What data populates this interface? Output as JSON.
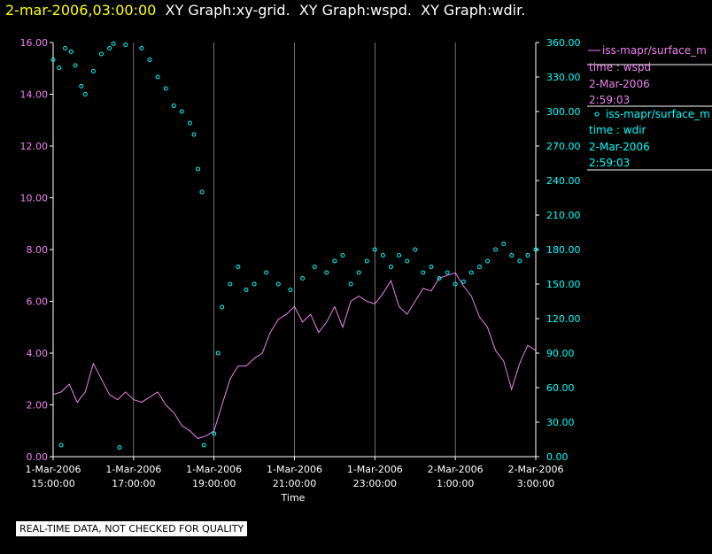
{
  "header": {
    "timestamp": "2-mar-2006,03:00:00",
    "graphs": [
      "XY Graph:xy-grid.",
      "XY Graph:wspd.",
      "XY Graph:wdir."
    ]
  },
  "footer": {
    "notice": "REAL-TIME DATA, NOT CHECKED FOR QUALITY"
  },
  "legend": [
    {
      "marker": "line",
      "name": "iss-mapr/surface_m",
      "field": "time : wspd",
      "date": "2-Mar-2006",
      "time": "2:59:03",
      "color": "#ee82ee"
    },
    {
      "marker": "o",
      "name": "iss-mapr/surface_m",
      "field": "time : wdir",
      "date": "2-Mar-2006",
      "time": "2:59:03",
      "color": "#00ffff"
    }
  ],
  "colors": {
    "background": "#000000",
    "left_axis": "#ee82ee",
    "right_axis": "#00ffff",
    "grid": "#ffffff",
    "timestamp": "#ffff00"
  },
  "chart_data": {
    "type": "line+scatter",
    "xlabel": "Time",
    "x_range_hours": [
      15,
      27
    ],
    "x_ticks": [
      {
        "h": 15,
        "date": "1-Mar-2006",
        "time": "15:00:00"
      },
      {
        "h": 17,
        "date": "1-Mar-2006",
        "time": "17:00:00"
      },
      {
        "h": 19,
        "date": "1-Mar-2006",
        "time": "19:00:00"
      },
      {
        "h": 21,
        "date": "1-Mar-2006",
        "time": "21:00:00"
      },
      {
        "h": 23,
        "date": "1-Mar-2006",
        "time": "23:00:00"
      },
      {
        "h": 25,
        "date": "2-Mar-2006",
        "time": "1:00:00"
      },
      {
        "h": 27,
        "date": "2-Mar-2006",
        "time": "3:00:00"
      }
    ],
    "y_left": {
      "label": "wspd",
      "range": [
        0,
        16
      ],
      "ticks": [
        "0.00",
        "2.00",
        "4.00",
        "6.00",
        "8.00",
        "10.00",
        "12.00",
        "14.00",
        "16.00"
      ]
    },
    "y_right": {
      "label": "wdir",
      "range": [
        0,
        360
      ],
      "ticks": [
        "0.00",
        "30.00",
        "60.00",
        "90.00",
        "120.00",
        "150.00",
        "180.00",
        "210.00",
        "240.00",
        "270.00",
        "300.00",
        "330.00",
        "360.00"
      ]
    },
    "series": [
      {
        "name": "wspd",
        "axis": "left",
        "style": "line",
        "points": [
          [
            15.0,
            2.4
          ],
          [
            15.2,
            2.5
          ],
          [
            15.4,
            2.8
          ],
          [
            15.6,
            2.1
          ],
          [
            15.8,
            2.5
          ],
          [
            16.0,
            3.6
          ],
          [
            16.2,
            3.0
          ],
          [
            16.4,
            2.4
          ],
          [
            16.6,
            2.2
          ],
          [
            16.8,
            2.5
          ],
          [
            17.0,
            2.2
          ],
          [
            17.2,
            2.1
          ],
          [
            17.4,
            2.3
          ],
          [
            17.6,
            2.5
          ],
          [
            17.8,
            2.0
          ],
          [
            18.0,
            1.7
          ],
          [
            18.2,
            1.2
          ],
          [
            18.4,
            1.0
          ],
          [
            18.6,
            0.7
          ],
          [
            18.8,
            0.8
          ],
          [
            19.0,
            1.0
          ],
          [
            19.2,
            2.0
          ],
          [
            19.4,
            3.0
          ],
          [
            19.6,
            3.5
          ],
          [
            19.8,
            3.5
          ],
          [
            20.0,
            3.8
          ],
          [
            20.2,
            4.0
          ],
          [
            20.4,
            4.8
          ],
          [
            20.6,
            5.3
          ],
          [
            20.8,
            5.5
          ],
          [
            21.0,
            5.8
          ],
          [
            21.2,
            5.2
          ],
          [
            21.4,
            5.5
          ],
          [
            21.6,
            4.8
          ],
          [
            21.8,
            5.2
          ],
          [
            22.0,
            5.8
          ],
          [
            22.2,
            5.0
          ],
          [
            22.4,
            6.0
          ],
          [
            22.6,
            6.2
          ],
          [
            22.8,
            6.0
          ],
          [
            23.0,
            5.9
          ],
          [
            23.2,
            6.3
          ],
          [
            23.4,
            6.8
          ],
          [
            23.6,
            5.8
          ],
          [
            23.8,
            5.5
          ],
          [
            24.0,
            6.0
          ],
          [
            24.2,
            6.5
          ],
          [
            24.4,
            6.4
          ],
          [
            24.6,
            6.9
          ],
          [
            24.8,
            7.0
          ],
          [
            25.0,
            7.1
          ],
          [
            25.2,
            6.6
          ],
          [
            25.4,
            6.2
          ],
          [
            25.6,
            5.4
          ],
          [
            25.8,
            5.0
          ],
          [
            26.0,
            4.1
          ],
          [
            26.2,
            3.7
          ],
          [
            26.4,
            2.6
          ],
          [
            26.6,
            3.6
          ],
          [
            26.8,
            4.3
          ],
          [
            27.0,
            4.1
          ]
        ]
      },
      {
        "name": "wdir",
        "axis": "right",
        "style": "scatter",
        "points": [
          [
            15.0,
            345
          ],
          [
            15.15,
            338
          ],
          [
            15.3,
            355
          ],
          [
            15.45,
            352
          ],
          [
            15.55,
            340
          ],
          [
            15.7,
            322
          ],
          [
            15.8,
            315
          ],
          [
            16.0,
            335
          ],
          [
            16.2,
            350
          ],
          [
            16.4,
            355
          ],
          [
            16.5,
            359
          ],
          [
            16.65,
            8
          ],
          [
            15.2,
            10
          ],
          [
            16.8,
            358
          ],
          [
            17.2,
            355
          ],
          [
            17.4,
            345
          ],
          [
            17.6,
            330
          ],
          [
            17.8,
            320
          ],
          [
            18.0,
            305
          ],
          [
            18.2,
            300
          ],
          [
            18.4,
            290
          ],
          [
            18.5,
            280
          ],
          [
            18.6,
            250
          ],
          [
            18.7,
            230
          ],
          [
            18.75,
            10
          ],
          [
            19.0,
            20
          ],
          [
            19.1,
            90
          ],
          [
            19.2,
            130
          ],
          [
            19.4,
            150
          ],
          [
            19.6,
            165
          ],
          [
            19.8,
            145
          ],
          [
            20.0,
            150
          ],
          [
            20.3,
            160
          ],
          [
            20.6,
            150
          ],
          [
            20.9,
            145
          ],
          [
            21.2,
            155
          ],
          [
            21.5,
            165
          ],
          [
            21.8,
            160
          ],
          [
            22.0,
            170
          ],
          [
            22.2,
            175
          ],
          [
            22.4,
            150
          ],
          [
            22.6,
            160
          ],
          [
            22.8,
            170
          ],
          [
            23.0,
            180
          ],
          [
            23.2,
            175
          ],
          [
            23.4,
            165
          ],
          [
            23.6,
            175
          ],
          [
            23.8,
            170
          ],
          [
            24.0,
            180
          ],
          [
            24.2,
            160
          ],
          [
            24.4,
            165
          ],
          [
            24.6,
            155
          ],
          [
            24.8,
            160
          ],
          [
            25.0,
            150
          ],
          [
            25.2,
            152
          ],
          [
            25.4,
            160
          ],
          [
            25.6,
            165
          ],
          [
            25.8,
            170
          ],
          [
            26.0,
            180
          ],
          [
            26.2,
            185
          ],
          [
            26.4,
            175
          ],
          [
            26.6,
            170
          ],
          [
            26.8,
            175
          ],
          [
            27.0,
            180
          ]
        ]
      }
    ]
  }
}
